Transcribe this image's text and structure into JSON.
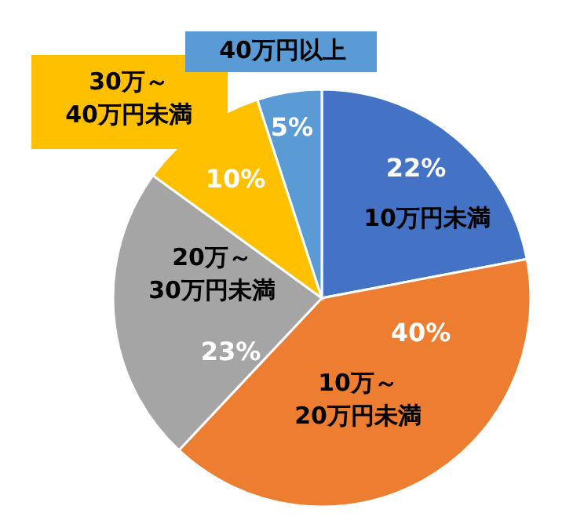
{
  "chart_data": {
    "type": "pie",
    "categories": [
      "10万円未満",
      "10万～\n20万円未満",
      "20万～\n30万円未満",
      "30万～\n40万円未満",
      "40万円以上"
    ],
    "values": [
      22,
      40,
      23,
      10,
      5
    ],
    "colors": [
      "#4472c4",
      "#ed7d31",
      "#a5a5a5",
      "#ffc000",
      "#5b9bd5"
    ],
    "value_labels": [
      "22%",
      "40%",
      "23%",
      "10%",
      "5%"
    ]
  }
}
